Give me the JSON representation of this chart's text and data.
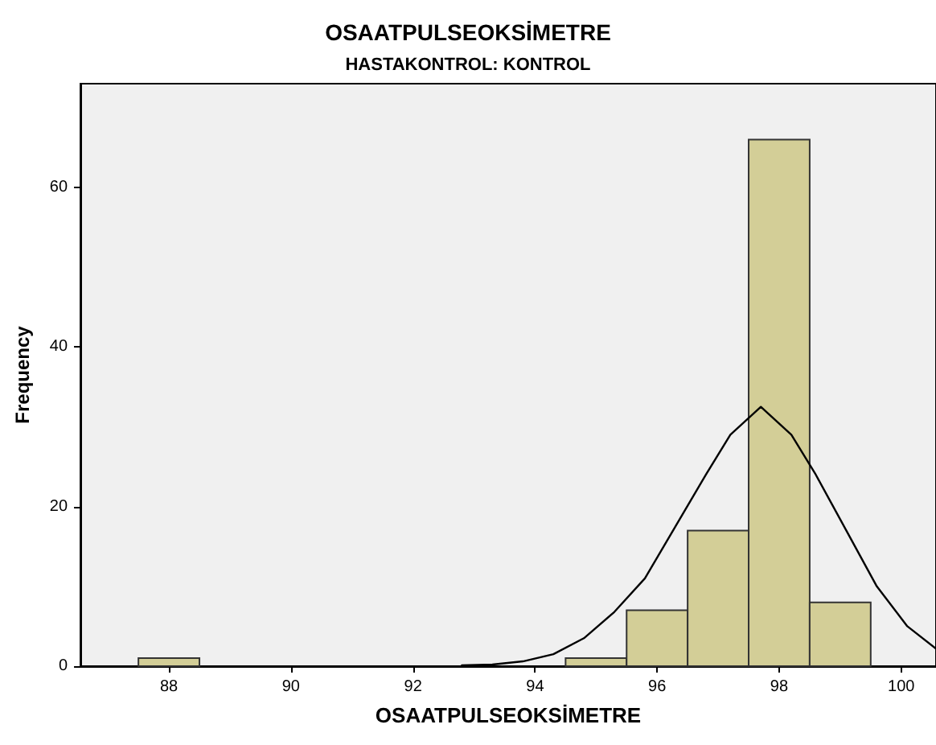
{
  "chart_data": {
    "type": "histogram",
    "title": "OSAATPULSEOKSİMETRE",
    "subtitle": "HASTAKONTROL: KONTROL",
    "xlabel": "OSAATPULSEOKSİMETRE",
    "ylabel": "Frequency",
    "bins": [
      87.5,
      88.5,
      89.5,
      90.5,
      91.5,
      92.5,
      93.5,
      94.5,
      95.5,
      96.5,
      97.5,
      98.5,
      99.5
    ],
    "values": [
      1,
      0,
      0,
      0,
      0,
      0,
      0,
      1,
      7,
      17,
      66,
      8
    ],
    "color": "#d3ce97",
    "series": [
      {
        "type": "line",
        "color": "#000000",
        "x": [
          92.8,
          93.3,
          93.8,
          94.3,
          94.8,
          95.3,
          95.8,
          96.3,
          96.8,
          97.2,
          97.7,
          98.2,
          98.6,
          99.1,
          99.6,
          100.1,
          100.57
        ],
        "values": [
          0.1,
          0.2,
          0.6,
          1.5,
          3.5,
          6.8,
          11,
          17.5,
          24,
          29,
          32.5,
          29,
          24,
          17,
          10,
          5,
          2.2
        ]
      }
    ],
    "marker": "none",
    "line_style": "solid",
    "xlim": [
      86.55,
      100.57
    ],
    "xticks": [
      88,
      90,
      92,
      94,
      96,
      98,
      100
    ],
    "ylim": [
      0,
      73
    ],
    "yticks": [
      0,
      20,
      40,
      60
    ],
    "grid": false
  }
}
